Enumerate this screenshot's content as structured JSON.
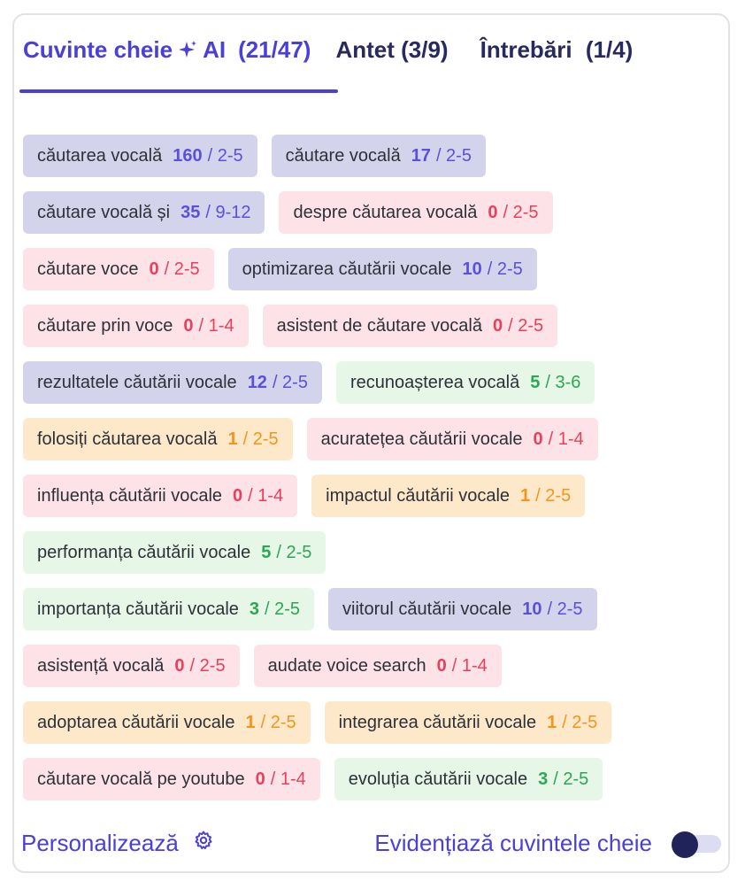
{
  "tabs": [
    {
      "label": "Cuvinte cheie",
      "ai": "AI",
      "count": "(21/47)",
      "active": true
    },
    {
      "label": "Antet",
      "count": "(3/9)",
      "active": false
    },
    {
      "label": "Întrebări",
      "count": "(1/4)",
      "active": false
    }
  ],
  "colors": {
    "accent": "#4a3fd6",
    "blue": "#5b4fdc",
    "red": "#e8405a",
    "green": "#2da653",
    "orange": "#f0961e"
  },
  "rows": [
    [
      {
        "text": "căutarea vocală",
        "count": "160",
        "range": "/ 2-5",
        "color": "blue"
      },
      {
        "text": "căutare vocală",
        "count": "17",
        "range": "/ 2-5",
        "color": "blue"
      }
    ],
    [
      {
        "text": "căutare vocală și",
        "count": "35",
        "range": "/ 9-12",
        "color": "blue"
      },
      {
        "text": "despre căutarea vocală",
        "count": "0",
        "range": "/ 2-5",
        "color": "red"
      }
    ],
    [
      {
        "text": "căutare voce",
        "count": "0",
        "range": "/ 2-5",
        "color": "red"
      },
      {
        "text": "optimizarea căutării vocale",
        "count": "10",
        "range": "/ 2-5",
        "color": "blue"
      }
    ],
    [
      {
        "text": "căutare prin voce",
        "count": "0",
        "range": "/ 1-4",
        "color": "red"
      },
      {
        "text": "asistent de căutare vocală",
        "count": "0",
        "range": "/ 2-5",
        "color": "red"
      }
    ],
    [
      {
        "text": "rezultatele căutării vocale",
        "count": "12",
        "range": "/ 2-5",
        "color": "blue"
      },
      {
        "text": "recunoașterea vocală",
        "count": "5",
        "range": "/ 3-6",
        "color": "green"
      }
    ],
    [
      {
        "text": "folosiți căutarea vocală",
        "count": "1",
        "range": "/ 2-5",
        "color": "orange"
      },
      {
        "text": "acuratețea căutării vocale",
        "count": "0",
        "range": "/ 1-4",
        "color": "red"
      }
    ],
    [
      {
        "text": "influența căutării vocale",
        "count": "0",
        "range": "/ 1-4",
        "color": "red"
      },
      {
        "text": "impactul căutării vocale",
        "count": "1",
        "range": "/ 2-5",
        "color": "orange"
      }
    ],
    [
      {
        "text": "performanța căutării vocale",
        "count": "5",
        "range": "/ 2-5",
        "color": "green"
      }
    ],
    [
      {
        "text": "importanța căutării vocale",
        "count": "3",
        "range": "/ 2-5",
        "color": "green"
      },
      {
        "text": "viitorul căutării vocale",
        "count": "10",
        "range": "/ 2-5",
        "color": "blue"
      }
    ],
    [
      {
        "text": "asistență vocală",
        "count": "0",
        "range": "/ 2-5",
        "color": "red"
      },
      {
        "text": "audate voice search",
        "count": "0",
        "range": "/ 1-4",
        "color": "red"
      }
    ],
    [
      {
        "text": "adoptarea căutării vocale",
        "count": "1",
        "range": "/ 2-5",
        "color": "orange"
      },
      {
        "text": "integrarea căutării vocale",
        "count": "1",
        "range": "/ 2-5",
        "color": "orange"
      }
    ],
    [
      {
        "text": "căutare vocală pe youtube",
        "count": "0",
        "range": "/ 1-4",
        "color": "red"
      },
      {
        "text": "evoluția căutării vocale",
        "count": "3",
        "range": "/ 2-5",
        "color": "green"
      }
    ]
  ],
  "footer": {
    "customize_label": "Personalizează",
    "customize_icon": "gear-icon",
    "highlight_label": "Evidențiază cuvintele cheie",
    "highlight_on": false
  }
}
